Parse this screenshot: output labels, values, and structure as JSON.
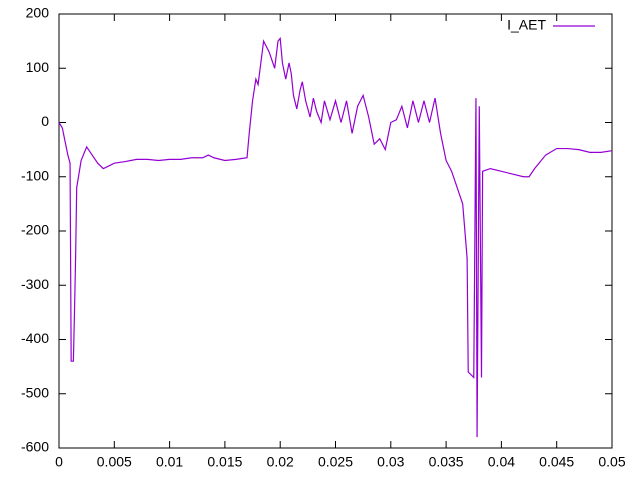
{
  "chart_data": {
    "type": "line",
    "x": [
      0,
      0.0003,
      0.0008,
      0.001,
      0.0011,
      0.0013,
      0.0014,
      0.0015,
      0.0016,
      0.002,
      0.0025,
      0.003,
      0.0035,
      0.004,
      0.0045,
      0.005,
      0.006,
      0.007,
      0.008,
      0.009,
      0.01,
      0.011,
      0.012,
      0.013,
      0.0135,
      0.014,
      0.015,
      0.016,
      0.017,
      0.0172,
      0.0175,
      0.0178,
      0.018,
      0.0185,
      0.019,
      0.0195,
      0.0198,
      0.02,
      0.0202,
      0.0205,
      0.0208,
      0.021,
      0.0212,
      0.0215,
      0.0218,
      0.022,
      0.0223,
      0.0227,
      0.023,
      0.0233,
      0.0237,
      0.024,
      0.0245,
      0.025,
      0.0255,
      0.026,
      0.0265,
      0.027,
      0.0275,
      0.028,
      0.0285,
      0.029,
      0.0295,
      0.03,
      0.0305,
      0.031,
      0.0315,
      0.032,
      0.0325,
      0.033,
      0.0335,
      0.034,
      0.0345,
      0.035,
      0.0355,
      0.036,
      0.0365,
      0.0369,
      0.037,
      0.0375,
      0.0377,
      0.0378,
      0.038,
      0.0382,
      0.0383,
      0.039,
      0.04,
      0.041,
      0.042,
      0.0425,
      0.043,
      0.044,
      0.045,
      0.046,
      0.047,
      0.048,
      0.049,
      0.05
    ],
    "series": [
      {
        "name": "I_AET",
        "color": "#9400d3",
        "values": [
          0,
          -10,
          -60,
          -75,
          -440,
          -440,
          -350,
          -250,
          -120,
          -70,
          -45,
          -60,
          -75,
          -85,
          -80,
          -75,
          -72,
          -68,
          -68,
          -70,
          -68,
          -68,
          -65,
          -65,
          -60,
          -65,
          -70,
          -68,
          -65,
          -20,
          40,
          80,
          70,
          150,
          130,
          100,
          150,
          155,
          110,
          80,
          110,
          90,
          50,
          25,
          60,
          75,
          40,
          10,
          45,
          20,
          0,
          40,
          5,
          40,
          0,
          40,
          -20,
          30,
          50,
          10,
          -40,
          -30,
          -50,
          0,
          5,
          30,
          -10,
          40,
          0,
          40,
          0,
          45,
          -20,
          -70,
          -90,
          -120,
          -150,
          -250,
          -460,
          -470,
          45,
          -580,
          30,
          -470,
          -90,
          -85,
          -90,
          -95,
          -100,
          -100,
          -85,
          -60,
          -48,
          -48,
          -50,
          -55,
          -55,
          -52
        ]
      }
    ],
    "xlim": [
      0,
      0.05
    ],
    "xticks": [
      0,
      0.005,
      0.01,
      0.015,
      0.02,
      0.025,
      0.03,
      0.035,
      0.04,
      0.045,
      0.05
    ],
    "ylim": [
      -600,
      200
    ],
    "yticks": [
      -600,
      -500,
      -400,
      -300,
      -200,
      -100,
      0,
      100,
      200
    ],
    "legend": "top-right"
  }
}
